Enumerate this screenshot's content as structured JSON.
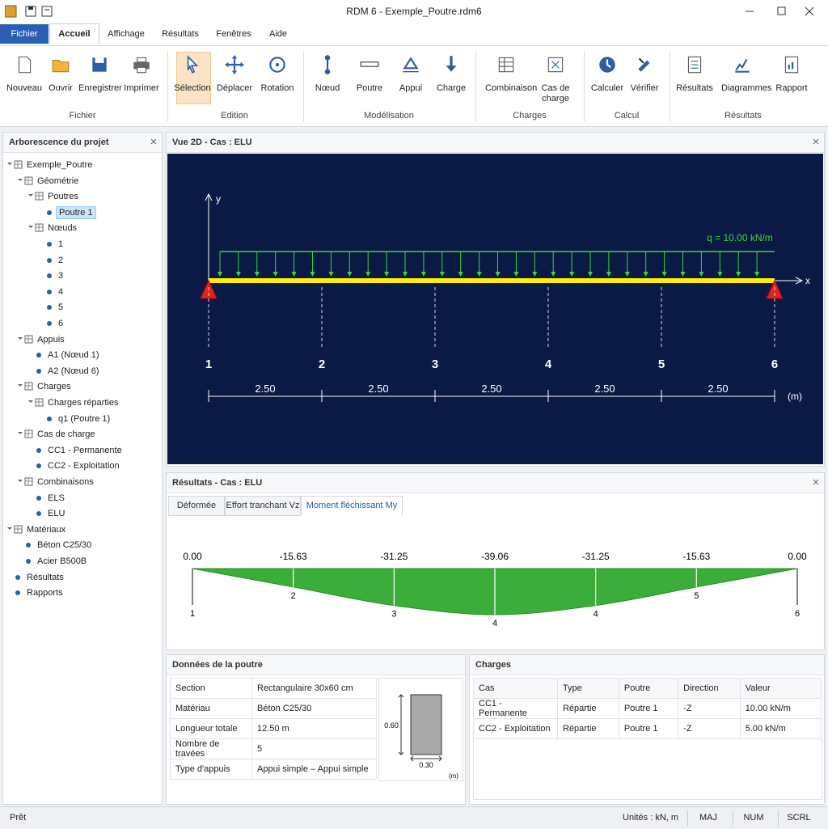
{
  "titlebar": {
    "title": "RDM 6 - Exemple_Poutre.rdm6"
  },
  "menu": {
    "tabs": [
      "Fichier",
      "Accueil",
      "Affichage",
      "Résultats",
      "Fenêtres",
      "Aide"
    ],
    "active": 1
  },
  "ribbon": {
    "groups": [
      {
        "label": "Fichier",
        "buttons": [
          "Nouveau",
          "Ouvrir",
          "Enregistrer",
          "Imprimer"
        ]
      },
      {
        "label": "Edition",
        "buttons": [
          "Sélection",
          "Déplacer",
          "Rotation"
        ]
      },
      {
        "label": "Modélisation",
        "buttons": [
          "Nœud",
          "Poutre",
          "Appui",
          "Charge"
        ]
      },
      {
        "label": "Charges",
        "buttons": [
          "Combinaison",
          "Cas de charge"
        ]
      },
      {
        "label": "Calcul",
        "buttons": [
          "Calculer",
          "Vérifier"
        ]
      },
      {
        "label": "Résultats",
        "buttons": [
          "Résultats",
          "Diagrammes",
          "Rapport"
        ]
      }
    ]
  },
  "tree": {
    "title": "Arborescence du projet",
    "items": [
      {
        "label": "Exemple_Poutre",
        "children": [
          {
            "label": "Géométrie",
            "children": [
              {
                "label": "Poutres",
                "children": [
                  {
                    "label": "Poutre 1",
                    "selected": true
                  }
                ]
              },
              {
                "label": "Nœuds",
                "children": [
                  {
                    "label": "1"
                  },
                  {
                    "label": "2"
                  },
                  {
                    "label": "3"
                  },
                  {
                    "label": "4"
                  },
                  {
                    "label": "5"
                  },
                  {
                    "label": "6"
                  }
                ]
              }
            ]
          },
          {
            "label": "Appuis",
            "children": [
              {
                "label": "A1 (Nœud 1)"
              },
              {
                "label": "A2 (Nœud 6)"
              }
            ]
          },
          {
            "label": "Charges",
            "children": [
              {
                "label": "Charges réparties",
                "children": [
                  {
                    "label": "q1 (Poutre 1)"
                  }
                ]
              }
            ]
          },
          {
            "label": "Cas de charge",
            "children": [
              {
                "label": "CC1 - Permanente"
              },
              {
                "label": "CC2 - Exploitation"
              }
            ]
          },
          {
            "label": "Combinaisons",
            "children": [
              {
                "label": "ELS"
              },
              {
                "label": "ELU"
              }
            ]
          }
        ]
      },
      {
        "label": "Matériaux",
        "children": [
          {
            "label": "Béton C25/30"
          },
          {
            "label": "Acier B500B"
          }
        ]
      },
      {
        "label": "Résultats"
      },
      {
        "label": "Rapports"
      }
    ]
  },
  "view2d": {
    "title": "Vue 2D - Cas : ELU",
    "axis_x": "x",
    "axis_y": "y",
    "load_label": "q = 10.00 kN/m",
    "nodes": [
      "1",
      "2",
      "3",
      "4",
      "5",
      "6"
    ],
    "spans": [
      "2.50",
      "2.50",
      "2.50",
      "2.50",
      "2.50"
    ],
    "unit": "(m)"
  },
  "results": {
    "title": "Résultats - Cas : ELU",
    "tabs": [
      "Déformée",
      "Effort tranchant Vz",
      "Moment fléchissant My"
    ],
    "active": 2,
    "moment": {
      "values": [
        0,
        -15.63,
        -31.25,
        -39.06,
        -31.25,
        -15.63,
        0
      ],
      "value_labels": [
        "0.00",
        "-15.63",
        "-31.25",
        "-39.06",
        "-31.25",
        "-15.63",
        "0.00"
      ],
      "nodes": [
        "1",
        "2",
        "3",
        "4",
        "4",
        "5",
        "6"
      ]
    }
  },
  "beam_data": {
    "title": "Données de la poutre",
    "rows": [
      [
        "Section",
        "Rectangulaire 30x60 cm"
      ],
      [
        "Matériau",
        "Béton C25/30"
      ],
      [
        "Longueur totale",
        "12.50 m"
      ],
      [
        "Nombre de travées",
        "5"
      ],
      [
        "Type d'appuis",
        "Appui simple – Appui simple"
      ]
    ],
    "section": {
      "height": "0.60",
      "width": "0.30",
      "unit": "(m)"
    }
  },
  "charges": {
    "title": "Charges",
    "columns": [
      "Cas",
      "Type",
      "Poutre",
      "Direction",
      "Valeur"
    ],
    "rows": [
      [
        "CC1 - Permanente",
        "Répartie",
        "Poutre 1",
        "-Z",
        "10.00 kN/m"
      ],
      [
        "CC2 - Exploitation",
        "Répartie",
        "Poutre 1",
        "-Z",
        "5.00 kN/m"
      ]
    ]
  },
  "status": {
    "message": "Prêt",
    "units": "Unités : kN, m",
    "indicators": [
      "MAJ",
      "NUM",
      "SCRL"
    ]
  }
}
